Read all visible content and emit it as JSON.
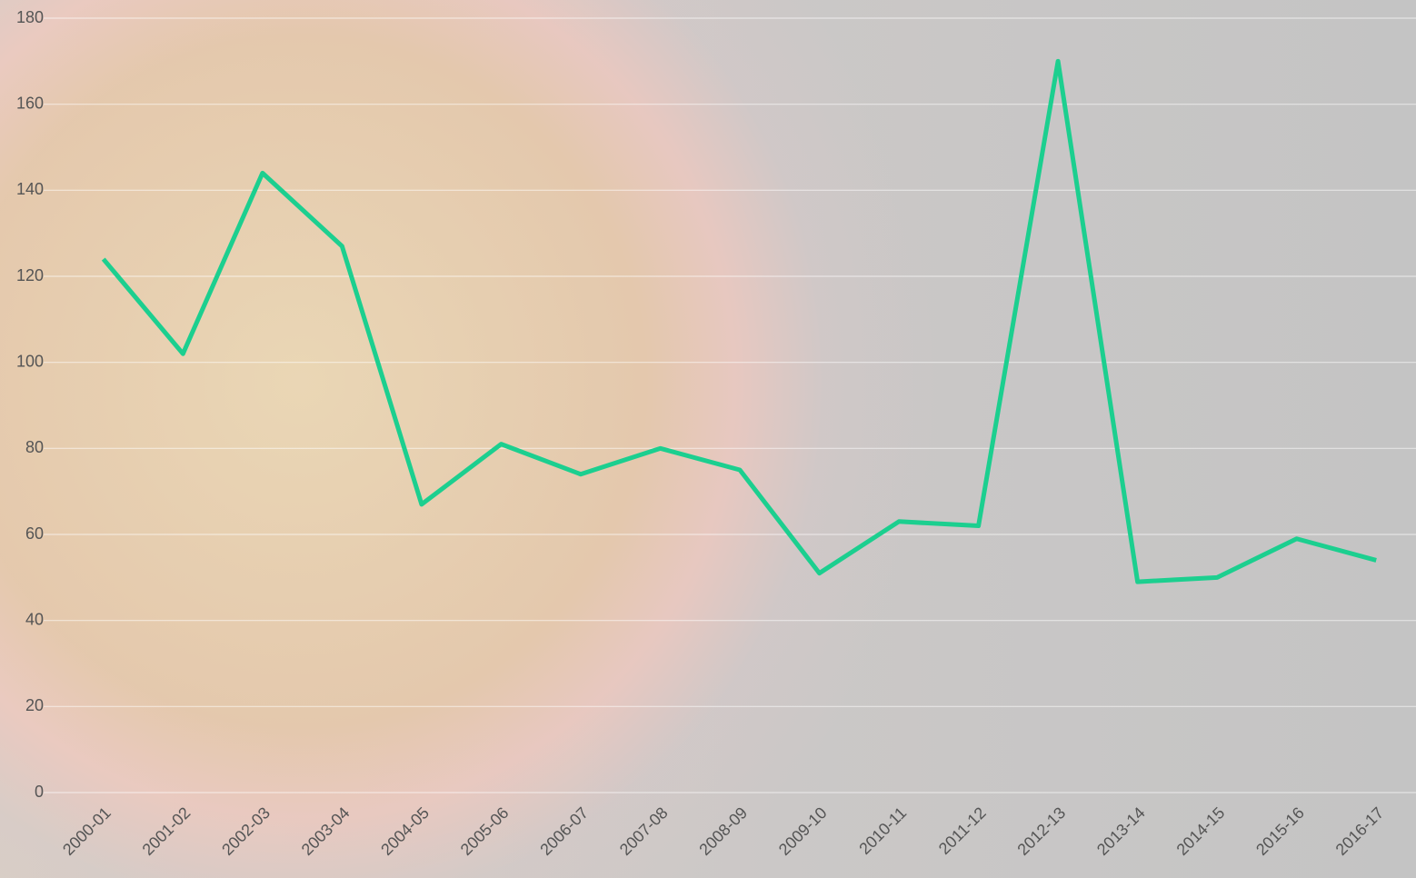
{
  "chart_data": {
    "type": "line",
    "categories": [
      "2000-01",
      "2001-02",
      "2002-03",
      "2003-04",
      "2004-05",
      "2005-06",
      "2006-07",
      "2007-08",
      "2008-09",
      "2009-10",
      "2010-11",
      "2011-12",
      "2012-13",
      "2013-14",
      "2014-15",
      "2015-16",
      "2016-17"
    ],
    "series": [
      {
        "color": "#1ccf8f",
        "values": [
          124,
          102,
          144,
          127,
          67,
          81,
          74,
          80,
          75,
          51,
          63,
          62,
          170,
          49,
          50,
          59,
          54
        ]
      }
    ],
    "ylim": [
      0,
      180
    ],
    "yticks": [
      0,
      20,
      40,
      60,
      80,
      100,
      120,
      140,
      160,
      180
    ],
    "grid": true
  }
}
